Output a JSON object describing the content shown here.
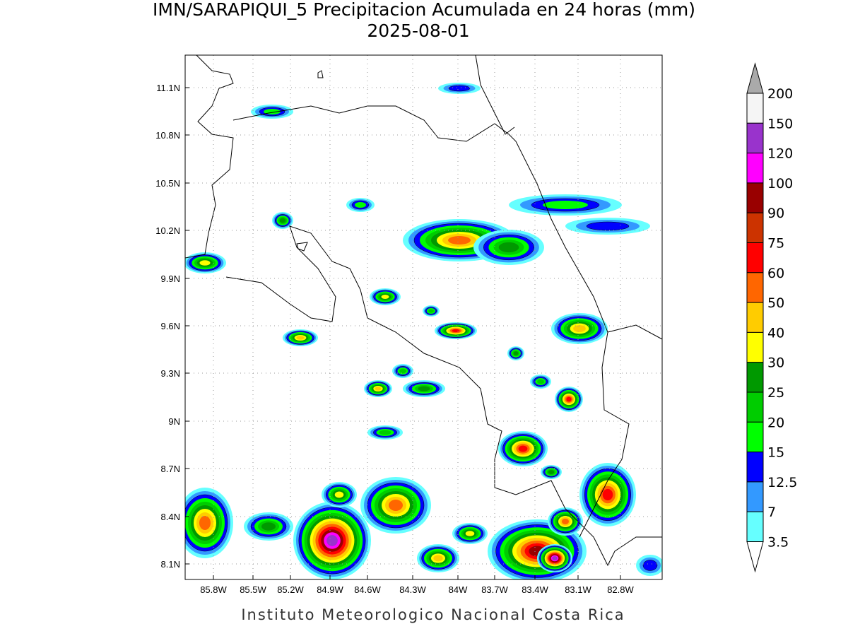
{
  "header": {
    "title": "IMN/SARAPIQUI_5 Precipitacion Acumulada en 24 horas (mm)",
    "date": "2025-08-01"
  },
  "map": {
    "lat_labels": [
      "11.1N",
      "10.8N",
      "10.5N",
      "10.2N",
      "9.9N",
      "9.6N",
      "9.3N",
      "9N",
      "8.7N",
      "8.4N",
      "8.1N"
    ],
    "lon_labels": [
      "85.8W",
      "85.5W",
      "85.2W",
      "84.9W",
      "84.6W",
      "84.3W",
      "84W",
      "83.7W",
      "83.4W",
      "83.1W",
      "82.8W"
    ]
  },
  "colorbar": {
    "labels": [
      "200",
      "150",
      "120",
      "100",
      "90",
      "75",
      "60",
      "50",
      "40",
      "30",
      "25",
      "20",
      "15",
      "12.5",
      "7",
      "3.5"
    ],
    "colors": [
      "#f5f5f5",
      "#9933cc",
      "#ff00ff",
      "#990000",
      "#cc3300",
      "#ff0000",
      "#ff6600",
      "#ffcc00",
      "#ffff00",
      "#009900",
      "#00cc00",
      "#00ff00",
      "#0000ff",
      "#3399ff",
      "#66ffff"
    ]
  },
  "footer": "Instituto Meteorologico Nacional Costa Rica"
}
